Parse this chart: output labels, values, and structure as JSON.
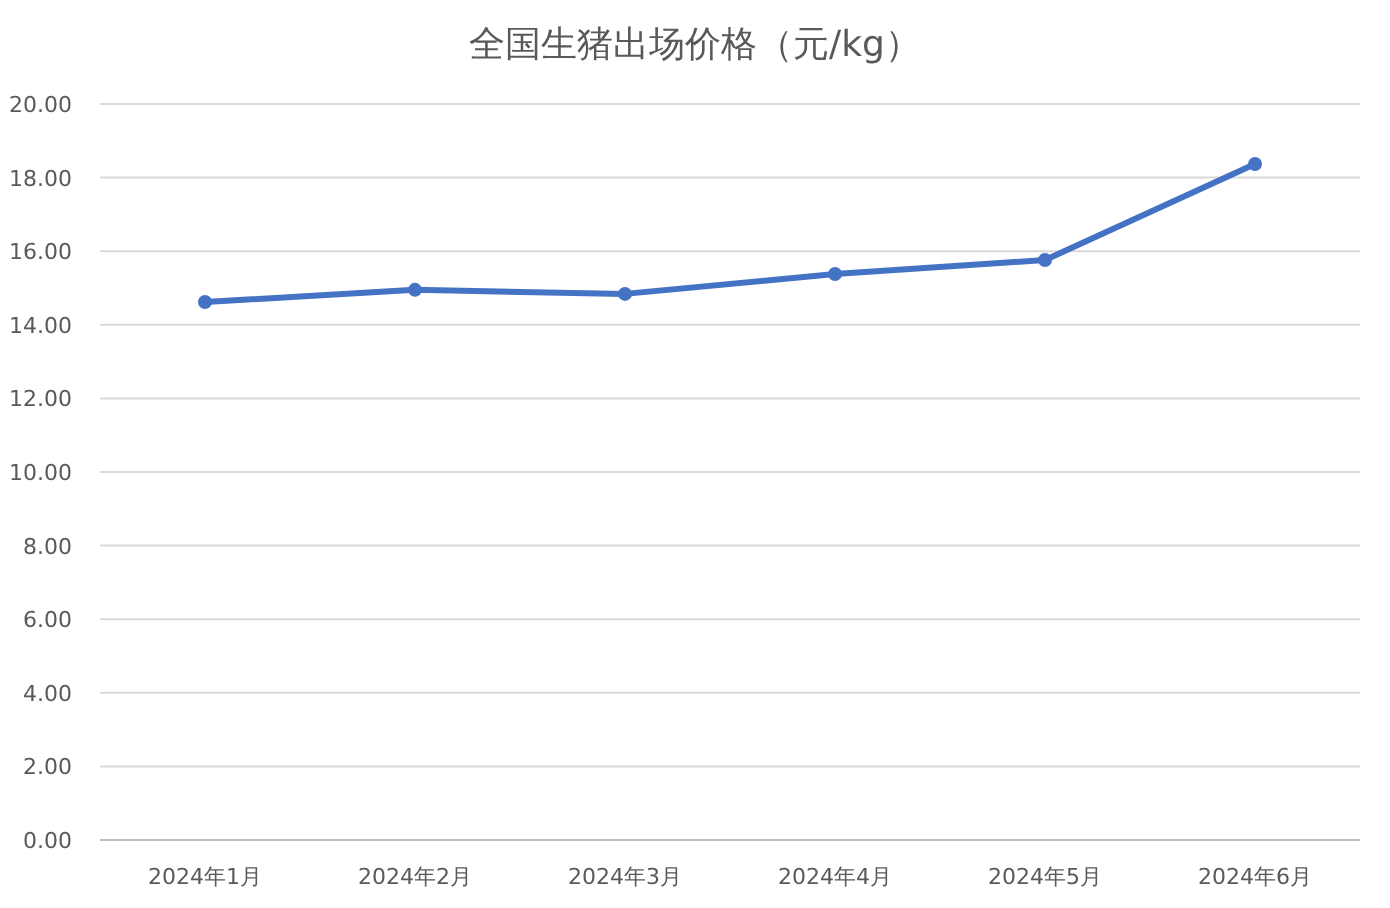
{
  "chart_data": {
    "type": "line",
    "title": "全国生猪出场价格（元/kg）",
    "categories": [
      "2024年1月",
      "2024年2月",
      "2024年3月",
      "2024年4月",
      "2024年5月",
      "2024年6月"
    ],
    "series": [
      {
        "color": "#4472c4",
        "values": [
          14.62,
          14.95,
          14.84,
          15.38,
          15.76,
          18.37
        ]
      }
    ],
    "ylim": [
      0,
      20
    ],
    "yticks": [
      {
        "value": 0,
        "label": "0.00"
      },
      {
        "value": 2,
        "label": "2.00"
      },
      {
        "value": 4,
        "label": "4.00"
      },
      {
        "value": 6,
        "label": "6.00"
      },
      {
        "value": 8,
        "label": "8.00"
      },
      {
        "value": 10,
        "label": "10.00"
      },
      {
        "value": 12,
        "label": "12.00"
      },
      {
        "value": 14,
        "label": "14.00"
      },
      {
        "value": 16,
        "label": "16.00"
      },
      {
        "value": 18,
        "label": "18.00"
      },
      {
        "value": 20,
        "label": "20.00"
      }
    ],
    "grid": "y",
    "marker": "circle",
    "line_style": "solid"
  }
}
